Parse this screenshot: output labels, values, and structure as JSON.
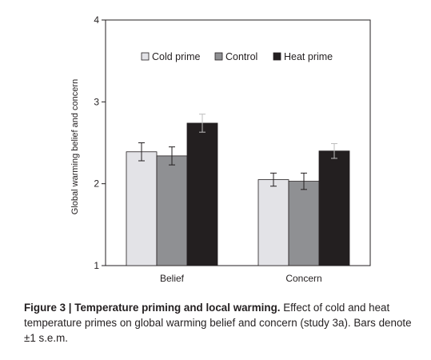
{
  "chart_data": {
    "type": "bar",
    "categories": [
      "Belief",
      "Concern"
    ],
    "series": [
      {
        "name": "Cold prime",
        "color": "#e3e3e7",
        "values": [
          2.39,
          2.05
        ],
        "errors": [
          0.11,
          0.08
        ]
      },
      {
        "name": "Control",
        "color": "#8f9093",
        "values": [
          2.34,
          2.03
        ],
        "errors": [
          0.11,
          0.1
        ]
      },
      {
        "name": "Heat prime",
        "color": "#231f20",
        "values": [
          2.74,
          2.4
        ],
        "errors": [
          0.11,
          0.09
        ]
      }
    ],
    "ylabel": "Global warming belief and concern",
    "xlabel": "",
    "ylim": [
      1,
      4
    ],
    "yticks": [
      "1",
      "2",
      "3",
      "4"
    ],
    "grid": false,
    "legend_position": "top-center"
  },
  "caption": {
    "lead": "Figure 3 | Temperature priming and local warming.",
    "body": " Effect of cold and heat temperature primes on global warming belief and concern (study 3a). Bars denote ±1 s.e.m."
  }
}
